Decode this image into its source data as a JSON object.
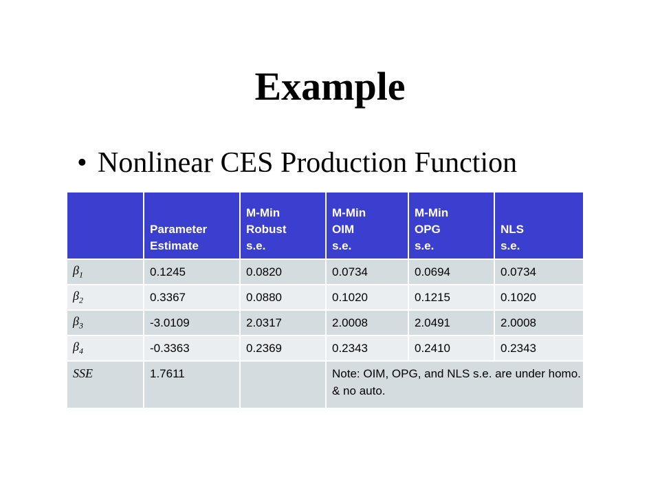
{
  "slide": {
    "title": "Example",
    "bullet": "Nonlinear CES Production Function",
    "bullet_marker": "•"
  },
  "table": {
    "header": [
      [],
      [
        "Parameter",
        "Estimate"
      ],
      [
        "M-Min",
        "Robust",
        "s.e."
      ],
      [
        "M-Min",
        "OIM",
        "s.e."
      ],
      [
        "M-Min",
        "OPG",
        "s.e."
      ],
      [
        "NLS",
        "s.e."
      ]
    ],
    "rows": [
      {
        "symbol": "β",
        "sub": "1",
        "values": [
          "0.1245",
          "0.0820",
          "0.0734",
          "0.0694",
          "0.0734"
        ]
      },
      {
        "symbol": "β",
        "sub": "2",
        "values": [
          "0.3367",
          "0.0880",
          "0.1020",
          "0.1215",
          "0.1020"
        ]
      },
      {
        "symbol": "β",
        "sub": "3",
        "values": [
          "-3.0109",
          "2.0317",
          "2.0008",
          "2.0491",
          "2.0008"
        ]
      },
      {
        "symbol": "β",
        "sub": "4",
        "values": [
          "-0.3363",
          "0.2369",
          "0.2343",
          "0.2410",
          "0.2343"
        ]
      }
    ],
    "sse": {
      "label": "SSE",
      "value": "1.7611",
      "blank": "",
      "note": "Note: OIM, OPG, and NLS s.e. are under homo. & no auto."
    },
    "colors": {
      "header_bg": "#3a3fd0",
      "row_odd": "#d5dcdf",
      "row_even": "#ebeef0"
    }
  }
}
